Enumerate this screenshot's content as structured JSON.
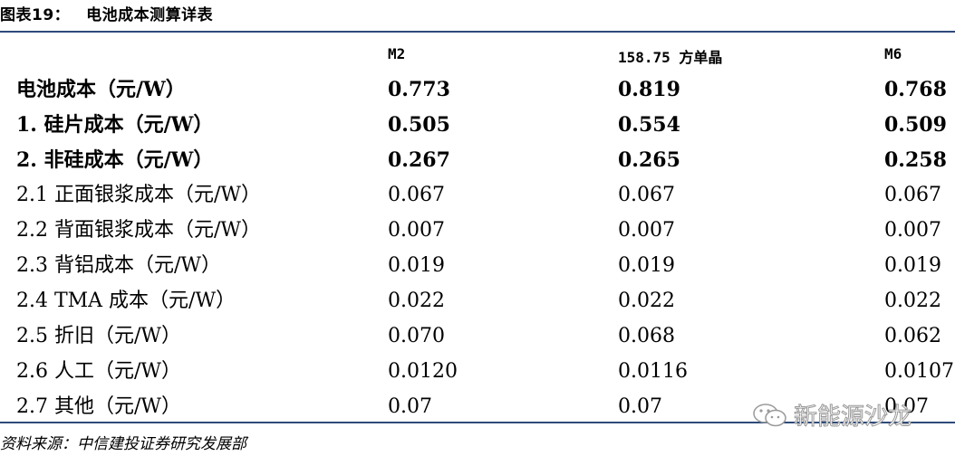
{
  "title": {
    "label": "图表19：",
    "text": "电池成本测算详表"
  },
  "columns": [
    "M2",
    "158.75 方单晶",
    "M6"
  ],
  "rows": [
    {
      "label": "电池成本（元/W）",
      "values": [
        "0.773",
        "0.819",
        "0.768"
      ],
      "bold": true
    },
    {
      "label": "1.  硅片成本（元/W）",
      "values": [
        "0.505",
        "0.554",
        "0.509"
      ],
      "bold": true
    },
    {
      "label": "2.  非硅成本（元/W）",
      "values": [
        "0.267",
        "0.265",
        "0.258"
      ],
      "bold": true
    },
    {
      "label": "2.1  正面银浆成本（元/W）",
      "values": [
        "0.067",
        "0.067",
        "0.067"
      ],
      "bold": false
    },
    {
      "label": "2.2  背面银浆成本（元/W）",
      "values": [
        "0.007",
        "0.007",
        "0.007"
      ],
      "bold": false
    },
    {
      "label": "2.3  背铝成本（元/W）",
      "values": [
        "0.019",
        "0.019",
        "0.019"
      ],
      "bold": false
    },
    {
      "label": "2.4 TMA 成本（元/W）",
      "values": [
        "0.022",
        "0.022",
        "0.022"
      ],
      "bold": false
    },
    {
      "label": "2.5  折旧（元/W）",
      "values": [
        "0.070",
        "0.068",
        "0.062"
      ],
      "bold": false
    },
    {
      "label": "2.6  人工（元/W）",
      "values": [
        "0.0120",
        "0.0116",
        "0.0107"
      ],
      "bold": false
    },
    {
      "label": "2.7  其他（元/W）",
      "values": [
        "0.07",
        "0.07",
        "0.07"
      ],
      "bold": false
    }
  ],
  "source": "资料来源：中信建投证券研究发展部",
  "watermark": "新能源沙龙",
  "colors": {
    "rule": "#2e4a7a"
  }
}
